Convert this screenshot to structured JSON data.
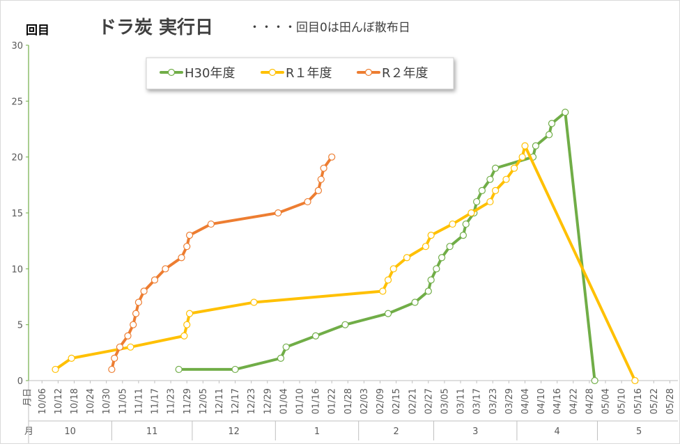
{
  "chart_data": {
    "type": "line",
    "title": "ドラ炭 実行日",
    "subtitle": "・・・・回目0は田んぼ散布日",
    "ylabel": "回目",
    "ylim": [
      0,
      30
    ],
    "yticks": [
      0,
      5,
      10,
      15,
      20,
      25,
      30
    ],
    "grid": false,
    "legend_position": "top-left",
    "x_row_label_day": "月日",
    "x_row_label_month": "月",
    "x_start": "10/01",
    "x_end": "05/31",
    "x_ticks": [
      "10/06",
      "10/12",
      "10/18",
      "10/24",
      "10/30",
      "11/05",
      "11/11",
      "11/17",
      "11/23",
      "11/29",
      "12/05",
      "12/11",
      "12/17",
      "12/23",
      "12/29",
      "01/04",
      "01/10",
      "01/16",
      "01/22",
      "01/28",
      "02/03",
      "02/09",
      "02/15",
      "02/21",
      "02/27",
      "03/05",
      "03/11",
      "03/17",
      "03/23",
      "03/29",
      "04/04",
      "04/10",
      "04/16",
      "04/22",
      "04/28",
      "05/04",
      "05/10",
      "05/16",
      "05/22",
      "05/28"
    ],
    "months": [
      {
        "label": "10",
        "start": "10/01",
        "end": "10/31"
      },
      {
        "label": "11",
        "start": "11/01",
        "end": "11/30"
      },
      {
        "label": "12",
        "start": "12/01",
        "end": "12/31"
      },
      {
        "label": "1",
        "start": "01/01",
        "end": "01/31"
      },
      {
        "label": "2",
        "start": "02/01",
        "end": "02/28"
      },
      {
        "label": "3",
        "start": "03/01",
        "end": "03/31"
      },
      {
        "label": "4",
        "start": "04/01",
        "end": "04/30"
      },
      {
        "label": "5",
        "start": "05/01",
        "end": "05/31"
      }
    ],
    "series": [
      {
        "name": "H30年度",
        "color": "#70ad47",
        "points": [
          [
            "11/26",
            1
          ],
          [
            "12/17",
            1
          ],
          [
            "01/03",
            2
          ],
          [
            "01/05",
            3
          ],
          [
            "01/16",
            4
          ],
          [
            "01/27",
            5
          ],
          [
            "02/12",
            6
          ],
          [
            "02/22",
            7
          ],
          [
            "02/27",
            8
          ],
          [
            "02/28",
            9
          ],
          [
            "03/02",
            10
          ],
          [
            "03/04",
            11
          ],
          [
            "03/07",
            12
          ],
          [
            "03/12",
            13
          ],
          [
            "03/13",
            14
          ],
          [
            "03/16",
            15
          ],
          [
            "03/17",
            16
          ],
          [
            "03/19",
            17
          ],
          [
            "03/22",
            18
          ],
          [
            "03/24",
            19
          ],
          [
            "04/07",
            20
          ],
          [
            "04/08",
            21
          ],
          [
            "04/13",
            22
          ],
          [
            "04/14",
            23
          ],
          [
            "04/19",
            24
          ],
          [
            "04/30",
            0
          ]
        ]
      },
      {
        "name": "R１年度",
        "color": "#ffc000",
        "points": [
          [
            "10/11",
            1
          ],
          [
            "10/17",
            2
          ],
          [
            "11/08",
            3
          ],
          [
            "11/28",
            4
          ],
          [
            "11/29",
            5
          ],
          [
            "11/30",
            6
          ],
          [
            "12/24",
            7
          ],
          [
            "02/10",
            8
          ],
          [
            "02/12",
            9
          ],
          [
            "02/14",
            10
          ],
          [
            "02/19",
            11
          ],
          [
            "02/26",
            12
          ],
          [
            "02/28",
            13
          ],
          [
            "03/08",
            14
          ],
          [
            "03/15",
            15
          ],
          [
            "03/22",
            16
          ],
          [
            "03/24",
            17
          ],
          [
            "03/28",
            18
          ],
          [
            "03/31",
            19
          ],
          [
            "04/03",
            20
          ],
          [
            "04/04",
            21
          ],
          [
            "05/15",
            0
          ]
        ]
      },
      {
        "name": "R２年度",
        "color": "#ed7d31",
        "points": [
          [
            "11/01",
            1
          ],
          [
            "11/02",
            2
          ],
          [
            "11/04",
            3
          ],
          [
            "11/07",
            4
          ],
          [
            "11/09",
            5
          ],
          [
            "11/10",
            6
          ],
          [
            "11/11",
            7
          ],
          [
            "11/13",
            8
          ],
          [
            "11/17",
            9
          ],
          [
            "11/21",
            10
          ],
          [
            "11/27",
            11
          ],
          [
            "11/29",
            12
          ],
          [
            "11/30",
            13
          ],
          [
            "12/08",
            14
          ],
          [
            "01/02",
            15
          ],
          [
            "01/13",
            16
          ],
          [
            "01/17",
            17
          ],
          [
            "01/18",
            18
          ],
          [
            "01/19",
            19
          ],
          [
            "01/22",
            20
          ]
        ]
      }
    ]
  }
}
